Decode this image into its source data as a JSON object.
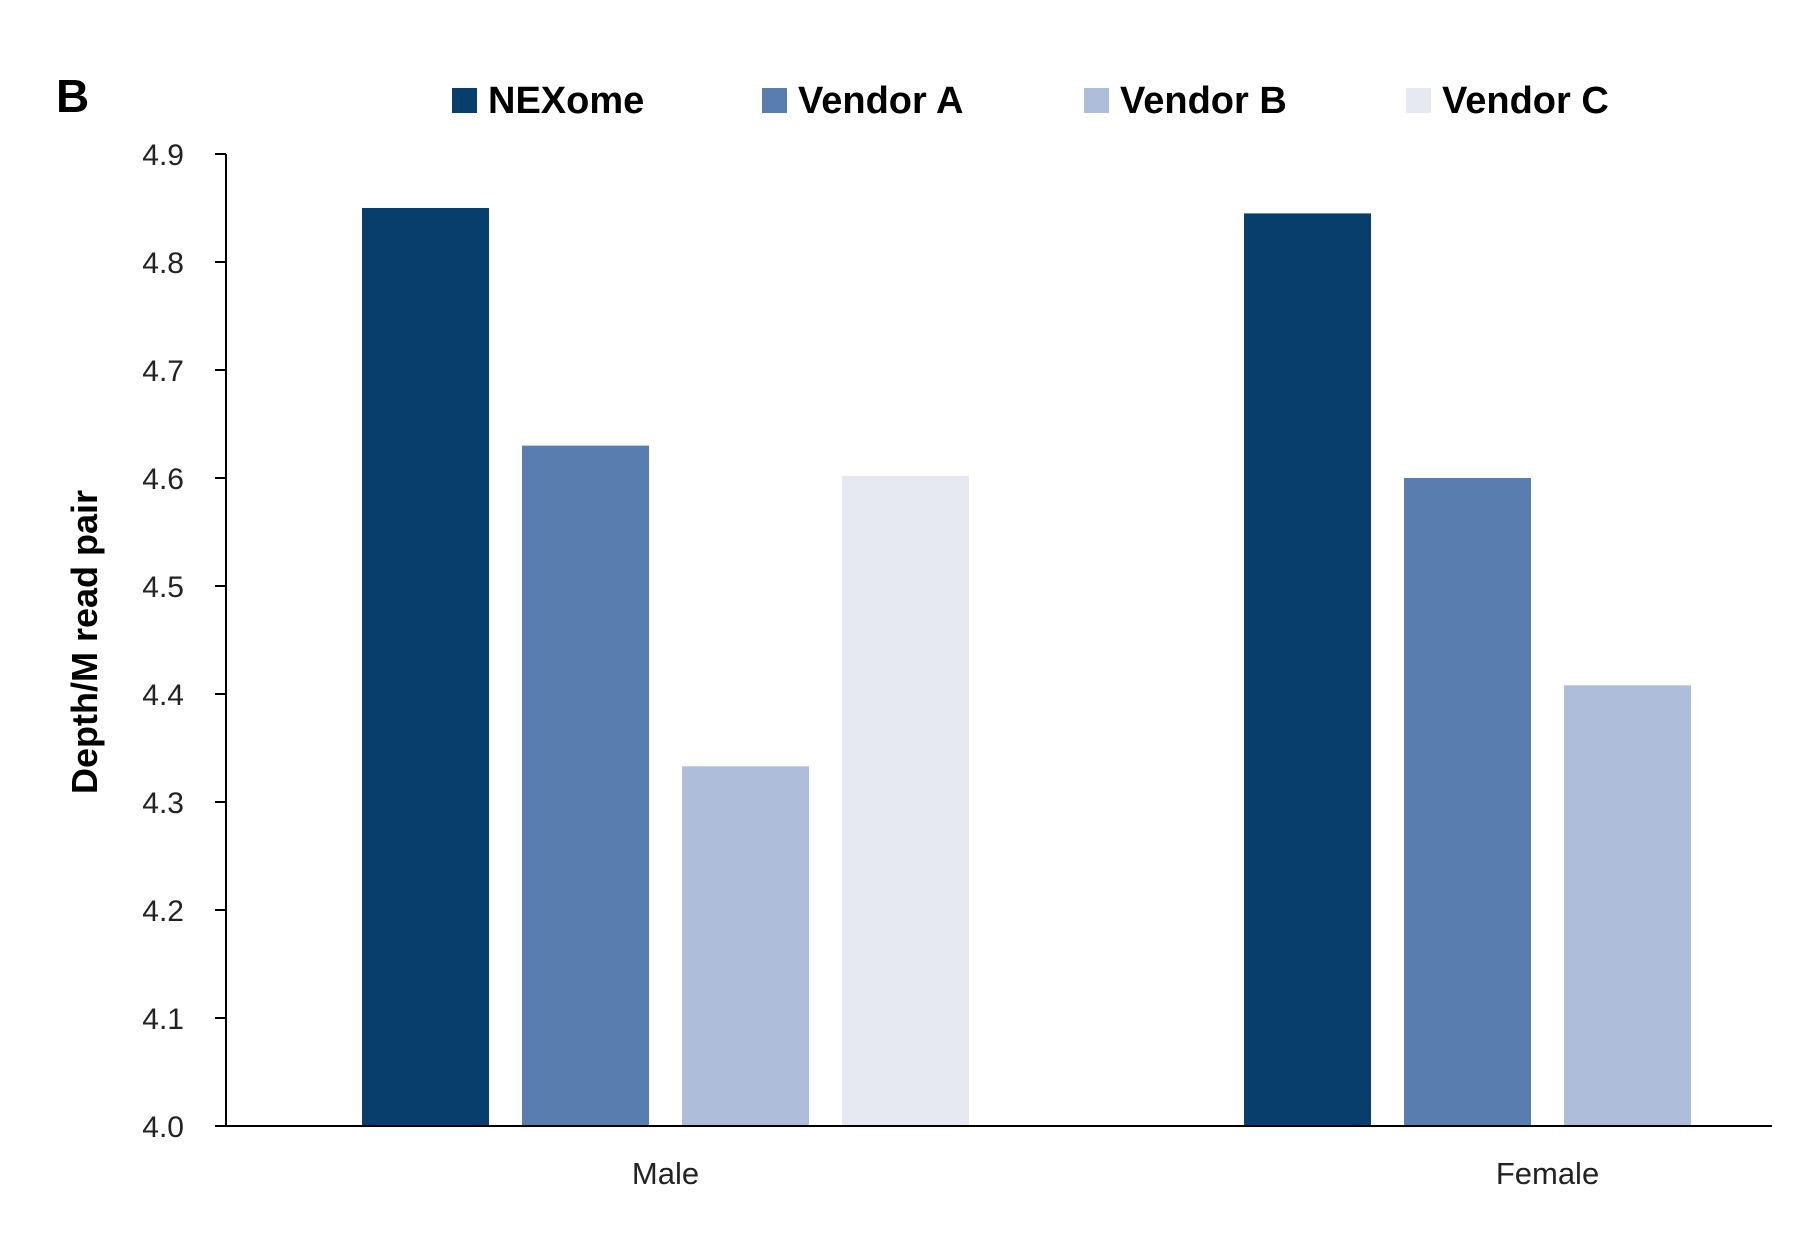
{
  "panel_label": "B",
  "chart_data": {
    "type": "bar",
    "title": "",
    "xlabel": "",
    "ylabel": "Depth/M read pair",
    "ylim": [
      4.0,
      4.9
    ],
    "yticks": [
      "4.0",
      "4.1",
      "4.2",
      "4.3",
      "4.4",
      "4.5",
      "4.6",
      "4.7",
      "4.8",
      "4.9"
    ],
    "categories": [
      "Male",
      "Female"
    ],
    "series": [
      {
        "name": "NEXome",
        "color": "#073e6b",
        "values": [
          4.85,
          4.845
        ]
      },
      {
        "name": "Vendor A",
        "color": "#5a7db0",
        "values": [
          4.63,
          4.6
        ]
      },
      {
        "name": "Vendor B",
        "color": "#aebdd9",
        "values": [
          4.333,
          4.408
        ]
      },
      {
        "name": "Vendor C",
        "color": "#e6e9f2",
        "values": [
          4.602,
          null
        ]
      }
    ],
    "legend_position": "top",
    "grid": false
  }
}
